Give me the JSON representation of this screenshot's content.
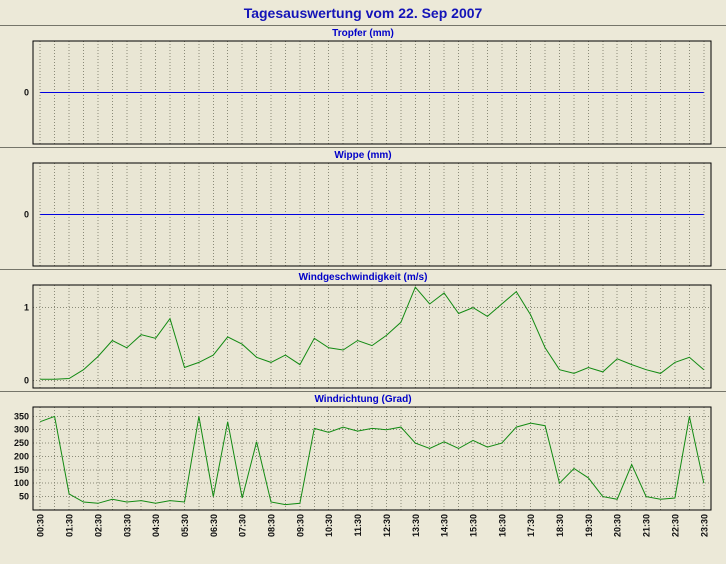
{
  "page": {
    "title": "Tagesauswertung vom 22. Sep 2007"
  },
  "colors": {
    "page_bg": "#ece9d8",
    "plot_bg": "#e9e6d4",
    "grid": "#8a8a78",
    "accent_blue": "#0000c8",
    "rain_line": "#0000e0",
    "wind_line": "#128a12"
  },
  "chart_data": [
    {
      "type": "line",
      "title": "Tropfer (mm)",
      "yticks": [
        0
      ],
      "ylim": [
        -1,
        1
      ],
      "hgrid": false,
      "show_x_labels": false,
      "x": [
        "00:30",
        "01:00",
        "01:30",
        "02:00",
        "02:30",
        "03:00",
        "03:30",
        "04:00",
        "04:30",
        "05:00",
        "05:30",
        "06:00",
        "06:30",
        "07:00",
        "07:30",
        "08:00",
        "08:30",
        "09:00",
        "09:30",
        "10:00",
        "10:30",
        "11:00",
        "11:30",
        "12:00",
        "12:30",
        "13:00",
        "13:30",
        "14:00",
        "14:30",
        "15:00",
        "15:30",
        "16:00",
        "16:30",
        "17:00",
        "17:30",
        "18:00",
        "18:30",
        "19:00",
        "19:30",
        "20:00",
        "20:30",
        "21:00",
        "21:30",
        "22:00",
        "22:30",
        "23:00",
        "23:30"
      ],
      "series": [
        {
          "name": "Tropfer",
          "color": "#0000e0",
          "values": [
            0,
            0,
            0,
            0,
            0,
            0,
            0,
            0,
            0,
            0,
            0,
            0,
            0,
            0,
            0,
            0,
            0,
            0,
            0,
            0,
            0,
            0,
            0,
            0,
            0,
            0,
            0,
            0,
            0,
            0,
            0,
            0,
            0,
            0,
            0,
            0,
            0,
            0,
            0,
            0,
            0,
            0,
            0,
            0,
            0,
            0,
            0
          ]
        }
      ]
    },
    {
      "type": "line",
      "title": "Wippe (mm)",
      "yticks": [
        0
      ],
      "ylim": [
        -1,
        1
      ],
      "hgrid": false,
      "show_x_labels": false,
      "x": [
        "00:30",
        "01:00",
        "01:30",
        "02:00",
        "02:30",
        "03:00",
        "03:30",
        "04:00",
        "04:30",
        "05:00",
        "05:30",
        "06:00",
        "06:30",
        "07:00",
        "07:30",
        "08:00",
        "08:30",
        "09:00",
        "09:30",
        "10:00",
        "10:30",
        "11:00",
        "11:30",
        "12:00",
        "12:30",
        "13:00",
        "13:30",
        "14:00",
        "14:30",
        "15:00",
        "15:30",
        "16:00",
        "16:30",
        "17:00",
        "17:30",
        "18:00",
        "18:30",
        "19:00",
        "19:30",
        "20:00",
        "20:30",
        "21:00",
        "21:30",
        "22:00",
        "22:30",
        "23:00",
        "23:30"
      ],
      "series": [
        {
          "name": "Wippe",
          "color": "#0000e0",
          "values": [
            0,
            0,
            0,
            0,
            0,
            0,
            0,
            0,
            0,
            0,
            0,
            0,
            0,
            0,
            0,
            0,
            0,
            0,
            0,
            0,
            0,
            0,
            0,
            0,
            0,
            0,
            0,
            0,
            0,
            0,
            0,
            0,
            0,
            0,
            0,
            0,
            0,
            0,
            0,
            0,
            0,
            0,
            0,
            0,
            0,
            0,
            0
          ]
        }
      ]
    },
    {
      "type": "line",
      "title": "Windgeschwindigkeit (m/s)",
      "yticks": [
        0,
        1
      ],
      "ylim": [
        -0.1,
        1.31
      ],
      "hgrid": true,
      "show_x_labels": false,
      "x": [
        "00:30",
        "01:00",
        "01:30",
        "02:00",
        "02:30",
        "03:00",
        "03:30",
        "04:00",
        "04:30",
        "05:00",
        "05:30",
        "06:00",
        "06:30",
        "07:00",
        "07:30",
        "08:00",
        "08:30",
        "09:00",
        "09:30",
        "10:00",
        "10:30",
        "11:00",
        "11:30",
        "12:00",
        "12:30",
        "13:00",
        "13:30",
        "14:00",
        "14:30",
        "15:00",
        "15:30",
        "16:00",
        "16:30",
        "17:00",
        "17:30",
        "18:00",
        "18:30",
        "19:00",
        "19:30",
        "20:00",
        "20:30",
        "21:00",
        "21:30",
        "22:00",
        "22:30",
        "23:00",
        "23:30"
      ],
      "series": [
        {
          "name": "Windgeschwindigkeit",
          "color": "#128a12",
          "values": [
            0.02,
            0.02,
            0.03,
            0.15,
            0.33,
            0.55,
            0.45,
            0.63,
            0.58,
            0.85,
            0.18,
            0.25,
            0.35,
            0.6,
            0.5,
            0.32,
            0.25,
            0.35,
            0.22,
            0.58,
            0.45,
            0.42,
            0.55,
            0.48,
            0.62,
            0.8,
            1.28,
            1.05,
            1.2,
            0.92,
            1.0,
            0.88,
            1.05,
            1.22,
            0.9,
            0.45,
            0.15,
            0.1,
            0.18,
            0.12,
            0.3,
            0.22,
            0.15,
            0.1,
            0.25,
            0.32,
            0.15
          ]
        }
      ]
    },
    {
      "type": "line",
      "title": "Windrichtung (Grad)",
      "yticks": [
        50,
        100,
        150,
        200,
        250,
        300,
        350
      ],
      "ylim": [
        0,
        385
      ],
      "hgrid": true,
      "show_x_labels": true,
      "x": [
        "00:30",
        "01:00",
        "01:30",
        "02:00",
        "02:30",
        "03:00",
        "03:30",
        "04:00",
        "04:30",
        "05:00",
        "05:30",
        "06:00",
        "06:30",
        "07:00",
        "07:30",
        "08:00",
        "08:30",
        "09:00",
        "09:30",
        "10:00",
        "10:30",
        "11:00",
        "11:30",
        "12:00",
        "12:30",
        "13:00",
        "13:30",
        "14:00",
        "14:30",
        "15:00",
        "15:30",
        "16:00",
        "16:30",
        "17:00",
        "17:30",
        "18:00",
        "18:30",
        "19:00",
        "19:30",
        "20:00",
        "20:30",
        "21:00",
        "21:30",
        "22:00",
        "22:30",
        "23:00",
        "23:30"
      ],
      "x_tick_label_every": 2,
      "series": [
        {
          "name": "Windrichtung",
          "color": "#128a12",
          "values": [
            330,
            350,
            60,
            30,
            25,
            40,
            30,
            35,
            25,
            35,
            30,
            350,
            50,
            330,
            45,
            255,
            30,
            20,
            25,
            305,
            290,
            310,
            295,
            305,
            300,
            310,
            250,
            230,
            255,
            230,
            260,
            235,
            250,
            310,
            325,
            315,
            100,
            155,
            120,
            50,
            40,
            170,
            50,
            40,
            45,
            350,
            100
          ]
        }
      ]
    }
  ]
}
